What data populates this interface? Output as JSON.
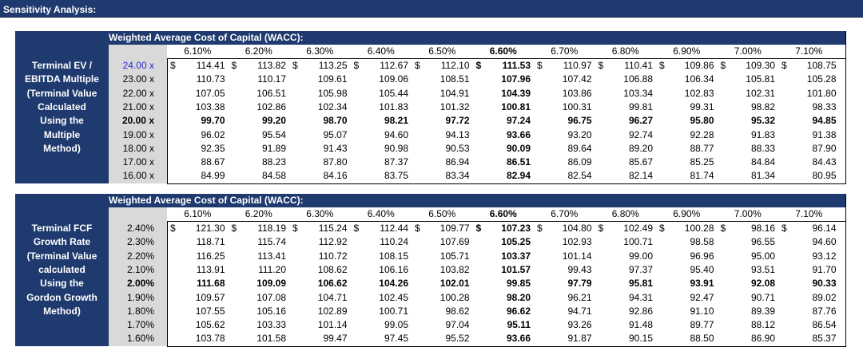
{
  "page_title": "Sensitivity Analysis:",
  "tables": [
    {
      "header_label": "Weighted Average Cost of Capital (WACC):",
      "left_label_lines": [
        "Terminal EV /",
        "EBITDA Multiple",
        "(Terminal Value",
        "Calculated",
        "Using the",
        "Multiple",
        "Method)"
      ],
      "columns": [
        "6.10%",
        "6.20%",
        "6.30%",
        "6.40%",
        "6.50%",
        "6.60%",
        "6.70%",
        "6.80%",
        "6.90%",
        "7.00%",
        "7.10%"
      ],
      "bold_column": 5,
      "bold_row": 4,
      "rows": [
        {
          "label": "24.00 x",
          "values": [
            "114.41",
            "113.82",
            "113.25",
            "112.67",
            "112.10",
            "111.53",
            "110.97",
            "110.41",
            "109.86",
            "109.30",
            "108.75"
          ]
        },
        {
          "label": "23.00 x",
          "values": [
            "110.73",
            "110.17",
            "109.61",
            "109.06",
            "108.51",
            "107.96",
            "107.42",
            "106.88",
            "106.34",
            "105.81",
            "105.28"
          ]
        },
        {
          "label": "22.00 x",
          "values": [
            "107.05",
            "106.51",
            "105.98",
            "105.44",
            "104.91",
            "104.39",
            "103.86",
            "103.34",
            "102.83",
            "102.31",
            "101.80"
          ]
        },
        {
          "label": "21.00 x",
          "values": [
            "103.38",
            "102.86",
            "102.34",
            "101.83",
            "101.32",
            "100.81",
            "100.31",
            "99.81",
            "99.31",
            "98.82",
            "98.33"
          ]
        },
        {
          "label": "20.00 x",
          "values": [
            "99.70",
            "99.20",
            "98.70",
            "98.21",
            "97.72",
            "97.24",
            "96.75",
            "96.27",
            "95.80",
            "95.32",
            "94.85"
          ]
        },
        {
          "label": "19.00 x",
          "values": [
            "96.02",
            "95.54",
            "95.07",
            "94.60",
            "94.13",
            "93.66",
            "93.20",
            "92.74",
            "92.28",
            "91.83",
            "91.38"
          ]
        },
        {
          "label": "18.00 x",
          "values": [
            "92.35",
            "91.89",
            "91.43",
            "90.98",
            "90.53",
            "90.09",
            "89.64",
            "89.20",
            "88.77",
            "88.33",
            "87.90"
          ]
        },
        {
          "label": "17.00 x",
          "values": [
            "88.67",
            "88.23",
            "87.80",
            "87.37",
            "86.94",
            "86.51",
            "86.09",
            "85.67",
            "85.25",
            "84.84",
            "84.43"
          ]
        },
        {
          "label": "16.00 x",
          "values": [
            "84.99",
            "84.58",
            "84.16",
            "83.75",
            "83.34",
            "82.94",
            "82.54",
            "82.14",
            "81.74",
            "81.34",
            "80.95"
          ]
        }
      ]
    },
    {
      "header_label": "Weighted Average Cost of Capital (WACC):",
      "left_label_lines": [
        "Terminal FCF",
        "Growth Rate",
        "(Terminal Value",
        "calculated",
        "Using the",
        "Gordon Growth",
        "Method)"
      ],
      "columns": [
        "6.10%",
        "6.20%",
        "6.30%",
        "6.40%",
        "6.50%",
        "6.60%",
        "6.70%",
        "6.80%",
        "6.90%",
        "7.00%",
        "7.10%"
      ],
      "bold_column": 5,
      "bold_row": 4,
      "rows": [
        {
          "label": "2.40%",
          "values": [
            "121.30",
            "118.19",
            "115.24",
            "112.44",
            "109.77",
            "107.23",
            "104.80",
            "102.49",
            "100.28",
            "98.16",
            "96.14"
          ]
        },
        {
          "label": "2.30%",
          "values": [
            "118.71",
            "115.74",
            "112.92",
            "110.24",
            "107.69",
            "105.25",
            "102.93",
            "100.71",
            "98.58",
            "96.55",
            "94.60"
          ]
        },
        {
          "label": "2.20%",
          "values": [
            "116.25",
            "113.41",
            "110.72",
            "108.15",
            "105.71",
            "103.37",
            "101.14",
            "99.00",
            "96.96",
            "95.00",
            "93.12"
          ]
        },
        {
          "label": "2.10%",
          "values": [
            "113.91",
            "111.20",
            "108.62",
            "106.16",
            "103.82",
            "101.57",
            "99.43",
            "97.37",
            "95.40",
            "93.51",
            "91.70"
          ]
        },
        {
          "label": "2.00%",
          "values": [
            "111.68",
            "109.09",
            "106.62",
            "104.26",
            "102.01",
            "99.85",
            "97.79",
            "95.81",
            "93.91",
            "92.08",
            "90.33"
          ]
        },
        {
          "label": "1.90%",
          "values": [
            "109.57",
            "107.08",
            "104.71",
            "102.45",
            "100.28",
            "98.20",
            "96.21",
            "94.31",
            "92.47",
            "90.71",
            "89.02"
          ]
        },
        {
          "label": "1.80%",
          "values": [
            "107.55",
            "105.16",
            "102.89",
            "100.71",
            "98.62",
            "96.62",
            "94.71",
            "92.86",
            "91.10",
            "89.39",
            "87.76"
          ]
        },
        {
          "label": "1.70%",
          "values": [
            "105.62",
            "103.33",
            "101.14",
            "99.05",
            "97.04",
            "95.11",
            "93.26",
            "91.48",
            "89.77",
            "88.12",
            "86.54"
          ]
        },
        {
          "label": "1.60%",
          "values": [
            "103.78",
            "101.58",
            "99.47",
            "97.45",
            "95.52",
            "93.66",
            "91.87",
            "90.15",
            "88.50",
            "86.90",
            "85.37"
          ]
        }
      ]
    }
  ],
  "currency_symbol": "$",
  "colors": {
    "header_bg": "#1f3a6e",
    "label_bg": "#d9d9d9",
    "highlight_text": "#2a2ad6"
  }
}
